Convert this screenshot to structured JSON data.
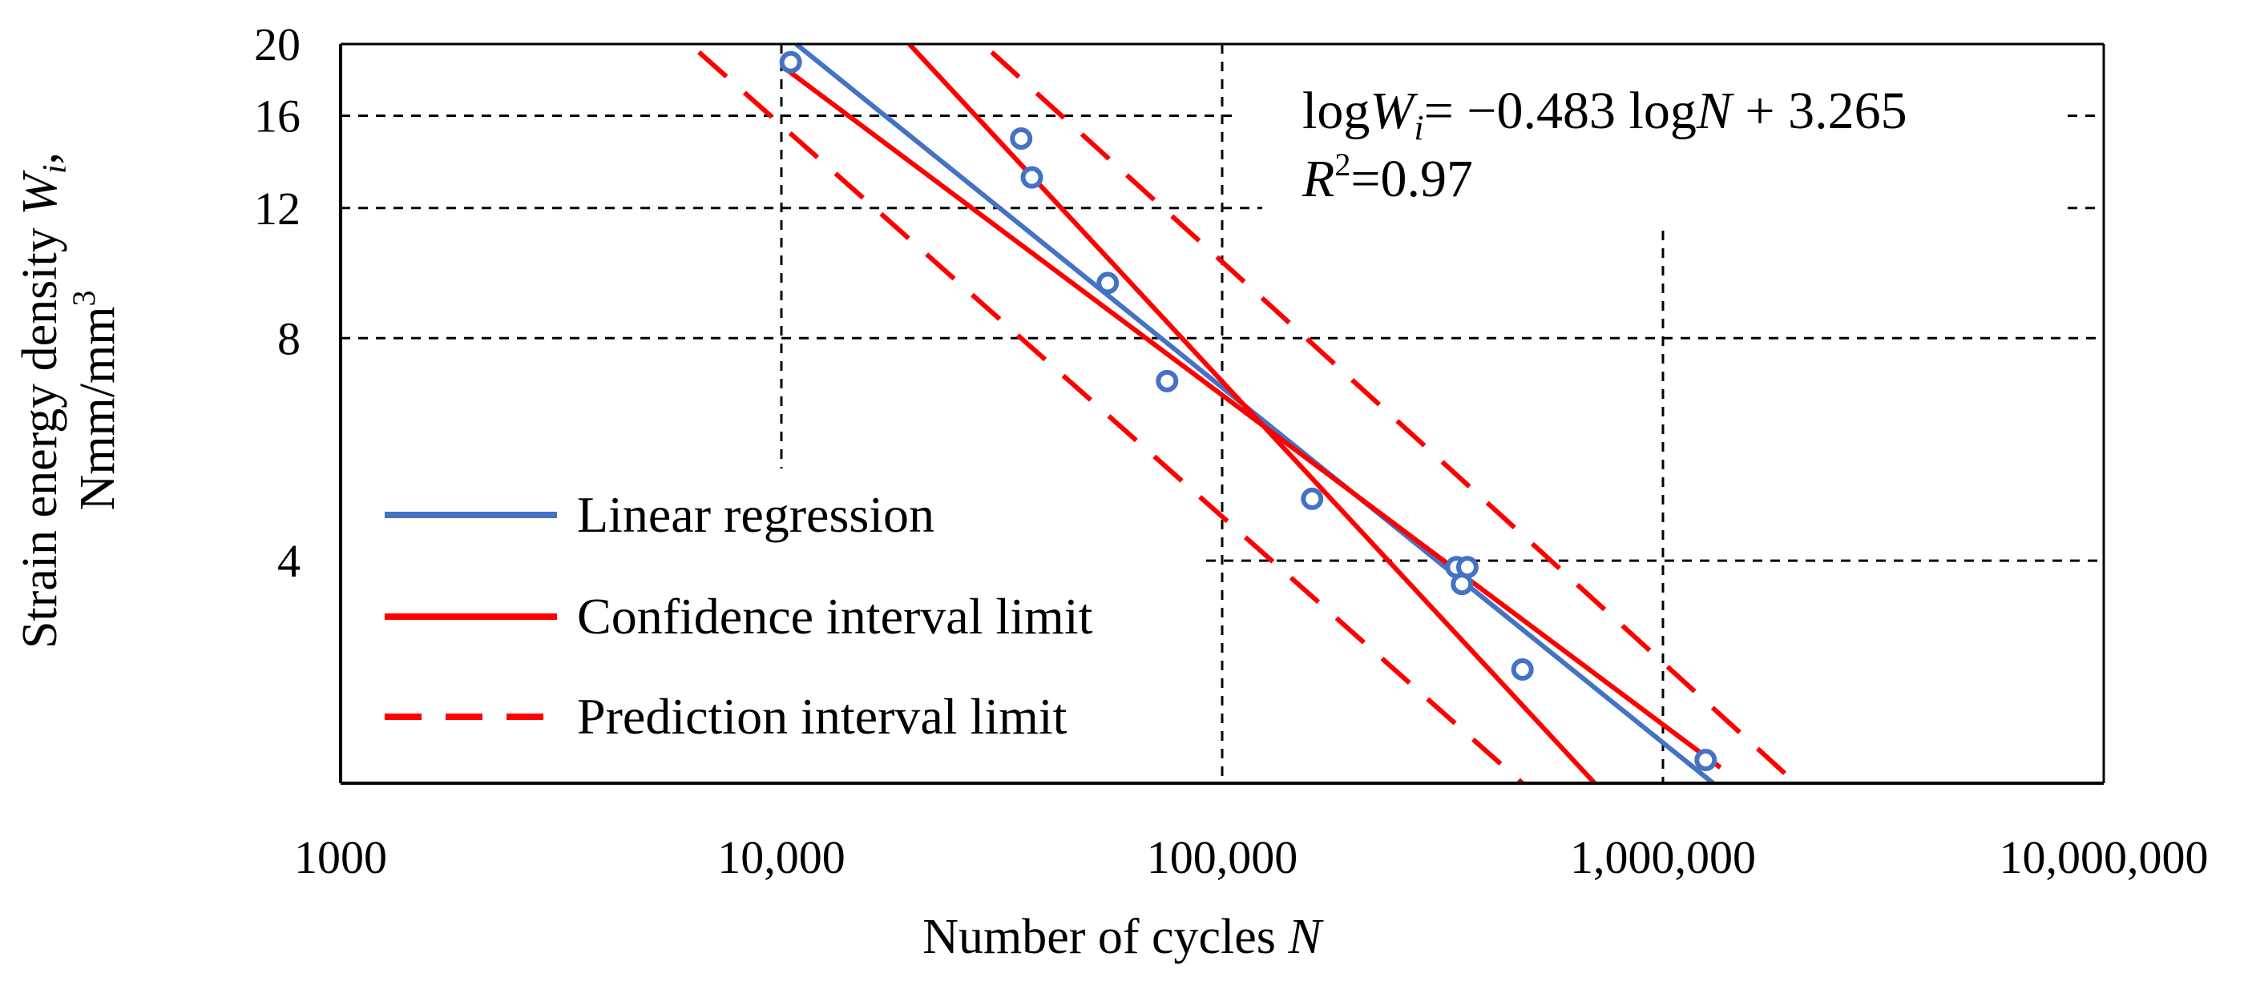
{
  "chart_data": {
    "type": "scatter",
    "xscale": "log",
    "yscale": "log",
    "xlim": [
      1000,
      10000000
    ],
    "ylim": [
      2,
      20
    ],
    "x_ticks": [
      1000,
      10000,
      100000,
      1000000,
      10000000
    ],
    "x_tick_labels": [
      "1000",
      "10,000",
      "100,000",
      "1,000,000",
      "10,000,000"
    ],
    "y_ticks": [
      4,
      8,
      12,
      16,
      20
    ],
    "y_tick_labels": [
      "4",
      "8",
      "12",
      "16",
      "20"
    ],
    "xlabel": {
      "text": "Number of cycles ",
      "var": "N"
    },
    "ylabel": {
      "line1_text": "Strain energy density ",
      "line1_var": "W",
      "line1_sub": "i",
      "line1_end": ",",
      "line2_text": "Nmm/mm",
      "line2_sup": "3"
    },
    "equation": {
      "pre": "log",
      "w": "W",
      "sub": "i",
      "mid": "= −0.483 log",
      "n": "N",
      "post": " + 3.265"
    },
    "r2": {
      "r": "R",
      "sup": "2",
      "rest": "=0.97"
    },
    "grid": "dashed partial",
    "legend_position": "lower-left",
    "colors": {
      "regression": "#4472C4",
      "interval": "#FF0000",
      "marker": "#4472C4",
      "grid": "#000000"
    },
    "points": [
      {
        "x": 10500,
        "y": 18.9
      },
      {
        "x": 35000,
        "y": 14.9
      },
      {
        "x": 37000,
        "y": 13.2
      },
      {
        "x": 55000,
        "y": 9.5
      },
      {
        "x": 75000,
        "y": 7.0
      },
      {
        "x": 160000,
        "y": 4.85
      },
      {
        "x": 340000,
        "y": 3.92
      },
      {
        "x": 360000,
        "y": 3.92
      },
      {
        "x": 350000,
        "y": 3.72
      },
      {
        "x": 480000,
        "y": 2.85
      },
      {
        "x": 1250000,
        "y": 2.15
      }
    ],
    "series": [
      {
        "name": "Linear regression",
        "kind": "line",
        "style": "solid",
        "color": "#4472C4",
        "x": [
          10800,
          1300000
        ],
        "y": [
          20,
          2.0
        ]
      },
      {
        "name": "Confidence interval limit",
        "kind": "line",
        "style": "solid",
        "color": "#FF0000",
        "x": [
          10000,
          1350000
        ],
        "y": [
          18.7,
          2.1
        ],
        "pair_x": [
          19500,
          700000
        ],
        "pair_y": [
          20,
          2.0
        ]
      },
      {
        "name": "Prediction interval limit",
        "kind": "line",
        "style": "dashed",
        "color": "#FF0000",
        "x": [
          6500,
          480000
        ],
        "y": [
          19.5,
          2.0
        ],
        "pair_x": [
          30000,
          2000000
        ],
        "pair_y": [
          19.5,
          2.0
        ]
      }
    ],
    "legend": [
      "Linear regression",
      "Confidence interval limit",
      "Prediction interval limit"
    ]
  }
}
